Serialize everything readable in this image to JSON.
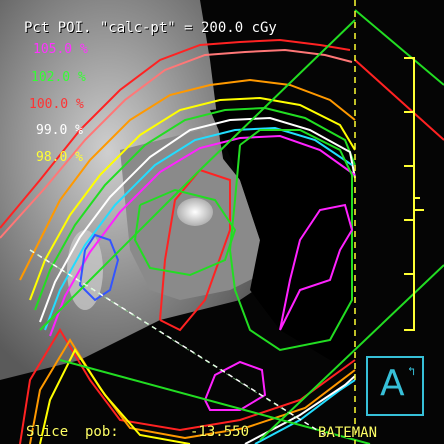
{
  "header": {
    "title": "Pct POI. \"calc-pt\" = 200.0 cGy"
  },
  "legend": [
    {
      "label": "105.0 %",
      "color": "#ff33ff"
    },
    {
      "label": "102.0 %",
      "color": "#33ff33"
    },
    {
      "label": "100.0 %",
      "color": "#ff3333"
    },
    {
      "label": "99.0 %",
      "color": "#ffffff"
    },
    {
      "label": "98.0 %",
      "color": "#ffff33"
    }
  ],
  "footer": {
    "slice_label": "Slice  pob:",
    "slice_value": "-13.550",
    "user": "BATEMAN"
  },
  "orientation": {
    "letter": "A",
    "arrow": "↰",
    "color": "#37c0d8"
  },
  "isodose_colors": {
    "red": "#ff2222",
    "orange": "#ff9900",
    "yellow": "#ffff00",
    "green": "#22dd22",
    "cyan": "#22ddff",
    "blue": "#3355ff",
    "magenta": "#ff22ff",
    "white": "#ffffff",
    "pink": "#ff7777"
  }
}
